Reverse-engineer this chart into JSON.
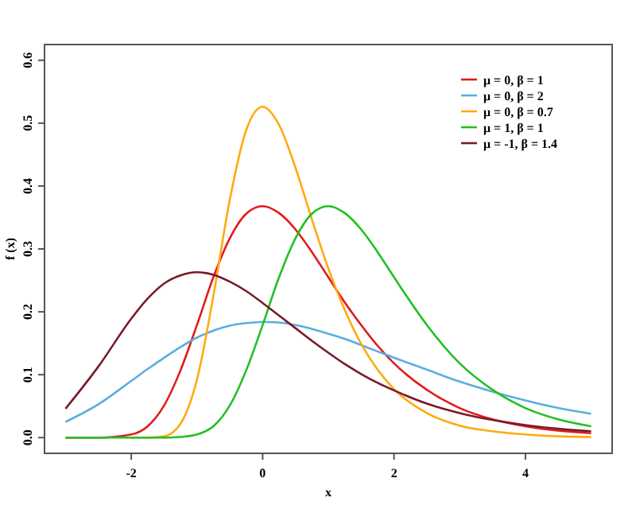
{
  "chart_data": {
    "type": "line",
    "xlabel": "x",
    "ylabel": "f (x)",
    "x": [
      -3,
      -2.5,
      -2,
      -1.75,
      -1.5,
      -1.25,
      -1,
      -0.75,
      -0.5,
      -0.25,
      0,
      0.25,
      0.5,
      0.75,
      1,
      1.25,
      1.5,
      1.75,
      2,
      2.5,
      3,
      3.5,
      4,
      4.5,
      5
    ],
    "xlim": [
      -3.32,
      5.32
    ],
    "xticks": [
      -2,
      0,
      2,
      4
    ],
    "ylim": [
      -0.025,
      0.625
    ],
    "yticks": [
      {
        "value": 0,
        "label": "0.0"
      },
      0.1,
      0.2,
      0.3,
      0.4,
      0.5,
      0.6
    ],
    "grid": false,
    "legend": "top right",
    "marker": "none",
    "line_style": "solid",
    "series": [
      {
        "name": "μ = 0, β = 1",
        "color": "#e01c1c",
        "values": [
          0.0,
          0.0,
          0.005,
          0.018,
          0.051,
          0.107,
          0.179,
          0.255,
          0.317,
          0.356,
          0.368,
          0.357,
          0.331,
          0.295,
          0.255,
          0.215,
          0.179,
          0.146,
          0.118,
          0.076,
          0.047,
          0.029,
          0.018,
          0.011,
          0.007
        ]
      },
      {
        "name": "μ = 0, β = 2",
        "color": "#5aaee0",
        "values": [
          0.025,
          0.053,
          0.09,
          0.109,
          0.127,
          0.144,
          0.159,
          0.17,
          0.178,
          0.182,
          0.184,
          0.183,
          0.179,
          0.173,
          0.165,
          0.157,
          0.147,
          0.137,
          0.127,
          0.108,
          0.089,
          0.073,
          0.059,
          0.047,
          0.038
        ]
      },
      {
        "name": "μ = 0, β = 0.7",
        "color": "#ffaa10",
        "values": [
          null,
          null,
          0.0,
          0.0,
          0.002,
          0.022,
          0.092,
          0.225,
          0.378,
          0.489,
          0.526,
          0.497,
          0.429,
          0.347,
          0.269,
          0.203,
          0.149,
          0.108,
          0.077,
          0.039,
          0.019,
          0.01,
          0.005,
          0.002,
          0.001
        ]
      },
      {
        "name": "μ = 1, β = 1",
        "color": "#22c022",
        "values": [
          0.0,
          0.0,
          0.0,
          0.0,
          0.0,
          0.001,
          0.005,
          0.018,
          0.051,
          0.107,
          0.179,
          0.255,
          0.317,
          0.356,
          0.368,
          0.357,
          0.331,
          0.295,
          0.255,
          0.179,
          0.118,
          0.076,
          0.047,
          0.029,
          0.018
        ]
      },
      {
        "name": "μ = -1, β = 1.4",
        "color": "#7a1a2a",
        "values": [
          0.046,
          0.113,
          0.189,
          0.221,
          0.245,
          0.258,
          0.263,
          0.259,
          0.248,
          0.233,
          0.214,
          0.194,
          0.174,
          0.154,
          0.135,
          0.117,
          0.101,
          0.087,
          0.075,
          0.054,
          0.039,
          0.028,
          0.02,
          0.014,
          0.01
        ]
      }
    ]
  }
}
